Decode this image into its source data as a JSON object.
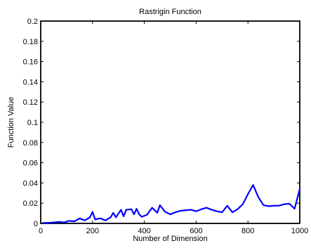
{
  "chart_data": {
    "type": "line",
    "title": "Rastrigin Function",
    "xlabel": "Number of Dimension",
    "ylabel": "Function Value",
    "xlim": [
      0,
      1000
    ],
    "ylim": [
      0,
      0.2
    ],
    "xticks": [
      0,
      200,
      400,
      600,
      800,
      1000
    ],
    "yticks": [
      0,
      0.02,
      0.04,
      0.06,
      0.08,
      0.1,
      0.12,
      0.14,
      0.16,
      0.18,
      0.2
    ],
    "xtick_labels": [
      "0",
      "200",
      "400",
      "600",
      "800",
      "1000"
    ],
    "ytick_labels": [
      "0",
      "0.02",
      "0.04",
      "0.06",
      "0.08",
      "0.1",
      "0.12",
      "0.14",
      "0.16",
      "0.18",
      "0.2"
    ],
    "grid": false,
    "series": [
      {
        "color": "#0000ff",
        "x": [
          10,
          30,
          50,
          70,
          90,
          110,
          130,
          150,
          170,
          190,
          200,
          210,
          230,
          250,
          270,
          280,
          290,
          310,
          320,
          330,
          350,
          360,
          370,
          380,
          390,
          410,
          430,
          450,
          460,
          480,
          500,
          520,
          540,
          560,
          580,
          600,
          620,
          640,
          660,
          680,
          700,
          720,
          740,
          760,
          780,
          800,
          820,
          840,
          860,
          880,
          900,
          920,
          940,
          960,
          980,
          1000
        ],
        "y": [
          0.0005,
          0.0005,
          0.001,
          0.0015,
          0.001,
          0.0025,
          0.002,
          0.005,
          0.003,
          0.006,
          0.0115,
          0.004,
          0.005,
          0.003,
          0.006,
          0.0105,
          0.006,
          0.0135,
          0.007,
          0.0135,
          0.014,
          0.009,
          0.0145,
          0.009,
          0.0065,
          0.0085,
          0.0155,
          0.0105,
          0.018,
          0.0115,
          0.009,
          0.011,
          0.0125,
          0.013,
          0.0135,
          0.012,
          0.014,
          0.0155,
          0.0135,
          0.012,
          0.011,
          0.0175,
          0.011,
          0.014,
          0.019,
          0.029,
          0.038,
          0.026,
          0.018,
          0.017,
          0.0175,
          0.0175,
          0.019,
          0.0195,
          0.0145,
          0.034
        ]
      }
    ]
  }
}
